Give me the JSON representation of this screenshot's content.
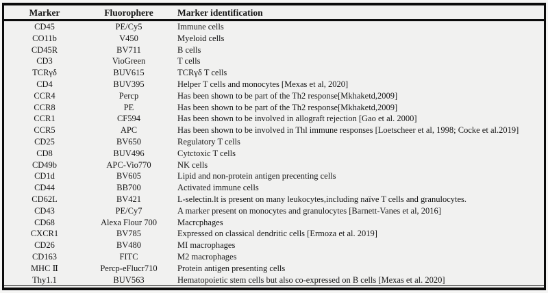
{
  "colors": {
    "border": "#0b0b0b",
    "background": "#f1f1f0",
    "text": "#161616"
  },
  "table": {
    "columns": [
      "Marker",
      "Fluorophere",
      "Marker identification"
    ],
    "rows": [
      {
        "marker": "CD45",
        "fluorophore": "PE/Cy5",
        "identification": "Immune cells"
      },
      {
        "marker": "CO11b",
        "fluorophore": "V450",
        "identification": "Myeloid cells"
      },
      {
        "marker": "CD45R",
        "fluorophore": "BV711",
        "identification": "B cells"
      },
      {
        "marker": "CD3",
        "fluorophore": "VioGreen",
        "identification": "T cells"
      },
      {
        "marker": "TCRγδ",
        "fluorophore": "BUV615",
        "identification": "TCRγδ T cells"
      },
      {
        "marker": "CD4",
        "fluorophore": "BUV395",
        "identification": "Helper T cells and monocytes [Mexas et al, 2020]"
      },
      {
        "marker": "CCR4",
        "fluorophore": "Percp",
        "identification": "Has been shown to be part of the Th2 response[Mkhaketd,2009]"
      },
      {
        "marker": "CCR8",
        "fluorophore": "PE",
        "identification": "Has been shown to be part of the Th2 response[Mkhaketd,2009]"
      },
      {
        "marker": "CCR1",
        "fluorophore": "CF594",
        "identification": "Has been shown to be involved in allograft rejection [Gao et al. 2000]"
      },
      {
        "marker": "CCR5",
        "fluorophore": "APC",
        "identification": "Has been shown to be involved in Thl immune responses [Loetscheer et al, 1998; Cocke et al.2019]"
      },
      {
        "marker": "CD25",
        "fluorophore": "BV650",
        "identification": "Regulatory T cells"
      },
      {
        "marker": "CD8",
        "fluorophore": "BUV496",
        "identification": "Cytctoxic T cells"
      },
      {
        "marker": "CD49b",
        "fluorophore": "APC-Vio770",
        "identification": "NK cells"
      },
      {
        "marker": "CD1d",
        "fluorophore": "BV605",
        "identification": "Lipid and non-protein antigen precenting cells"
      },
      {
        "marker": "CD44",
        "fluorophore": "BB700",
        "identification": "Activated immune cells"
      },
      {
        "marker": "CD62L",
        "fluorophore": "BV421",
        "identification": "L-selectin.lt is present on many leukocytes,including naïve T cells and granulocytes."
      },
      {
        "marker": "CD43",
        "fluorophore": "PE/Cy7",
        "identification": "A marker present on monocytes and granulocytes [Barnett-Vanes et al, 2016]"
      },
      {
        "marker": "CD68",
        "fluorophore": "Alexa Flour 700",
        "identification": "Macrcphages"
      },
      {
        "marker": "CXCR1",
        "fluorophore": "BV785",
        "identification": "Expressed on classical dendritic cells [Ermoza et al. 2019]"
      },
      {
        "marker": "CD26",
        "fluorophore": "BV480",
        "identification": "MI macrophages"
      },
      {
        "marker": "CD163",
        "fluorophore": "FITC",
        "identification": "M2 macrophages"
      },
      {
        "marker": "MHC Ⅱ",
        "fluorophore": "Percp-eFlucr710",
        "identification": "Protein antigen presenting cells"
      },
      {
        "marker": "Thy1.1",
        "fluorophore": "BUV563",
        "identification": "Hematopoietic stem cells but also co-expressed on B cells [Mexas et al. 2020]"
      }
    ]
  }
}
